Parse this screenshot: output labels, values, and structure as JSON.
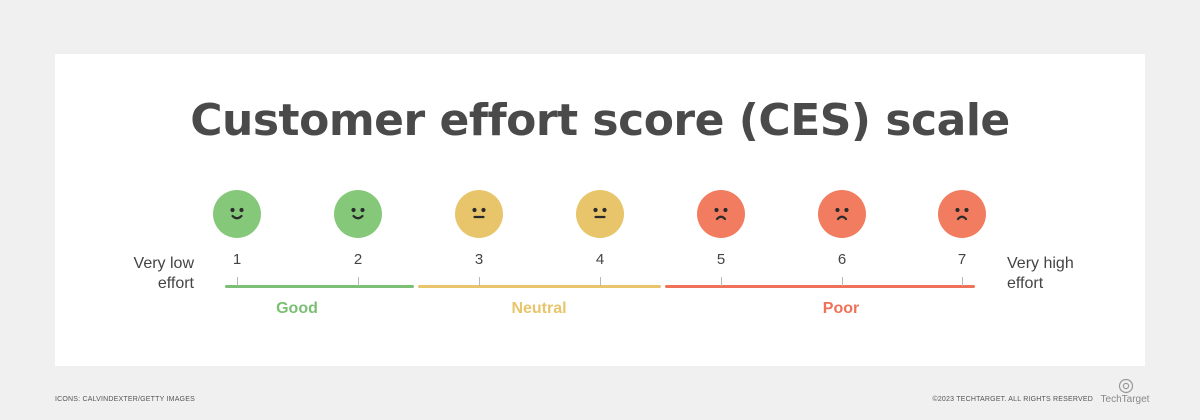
{
  "title": "Customer effort score (CES) scale",
  "scale": {
    "points": [
      1,
      2,
      3,
      4,
      5,
      6,
      7
    ],
    "min_label_line1": "Very low",
    "min_label_line2": "effort",
    "max_label_line1": "Very high",
    "max_label_line2": "effort"
  },
  "faces": [
    {
      "score": 1,
      "expression": "smile",
      "color": "#85c87a"
    },
    {
      "score": 2,
      "expression": "smile",
      "color": "#85c87a"
    },
    {
      "score": 3,
      "expression": "neutral",
      "color": "#e8c56b"
    },
    {
      "score": 4,
      "expression": "neutral",
      "color": "#e8c56b"
    },
    {
      "score": 5,
      "expression": "frown",
      "color": "#f27c5f"
    },
    {
      "score": 6,
      "expression": "frown",
      "color": "#f27c5f"
    },
    {
      "score": 7,
      "expression": "frown",
      "color": "#f27c5f"
    }
  ],
  "groups": [
    {
      "label": "Good",
      "scores": [
        1,
        2
      ],
      "color": "#7bbf74"
    },
    {
      "label": "Neutral",
      "scores": [
        3,
        4
      ],
      "color": "#e8c56b"
    },
    {
      "label": "Poor",
      "scores": [
        5,
        6,
        7
      ],
      "color": "#ef7258"
    }
  ],
  "footer": {
    "icon_credit": "ICONS: CALVINDEXTER/GETTY IMAGES",
    "copyright": "©2023 TECHTARGET. ALL RIGHTS RESERVED",
    "logo_text": "TechTarget"
  }
}
